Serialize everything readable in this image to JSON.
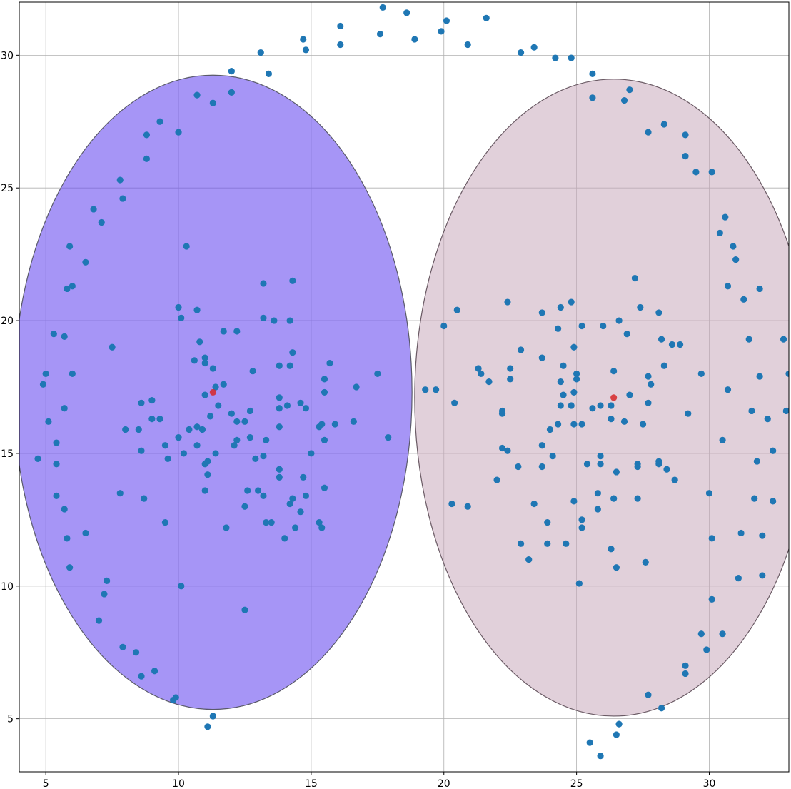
{
  "chart_data": {
    "type": "scatter",
    "title": "",
    "xlabel": "",
    "ylabel": "",
    "xlim": [
      4,
      33
    ],
    "ylim": [
      3,
      32
    ],
    "grid": true,
    "x_ticks": [
      5,
      10,
      15,
      20,
      25,
      30
    ],
    "y_ticks": [
      5,
      10,
      15,
      20,
      25,
      30
    ],
    "x_tick_labels": [
      "5",
      "10",
      "15",
      "20",
      "25",
      "30"
    ],
    "y_tick_labels": [
      "5",
      "10",
      "15",
      "20",
      "25",
      "30"
    ],
    "point_color": "#1f77b4",
    "center_color": "#d62728",
    "ellipses": [
      {
        "center": [
          11.3,
          17.3
        ],
        "width": 15.0,
        "height": 23.9,
        "face_color": "#6a4ef0",
        "face_opacity": 0.6,
        "edge_color": "#5a5a6a"
      },
      {
        "center": [
          26.4,
          17.1
        ],
        "width": 15.0,
        "height": 24.0,
        "face_color": "#c8aabb",
        "face_opacity": 0.55,
        "edge_color": "#6a5a64"
      }
    ],
    "centers": [
      {
        "x": 11.3,
        "y": 17.3
      },
      {
        "x": 26.4,
        "y": 17.1
      }
    ],
    "points": [
      [
        4.7,
        14.8
      ],
      [
        4.9,
        17.6
      ],
      [
        5.0,
        18.0
      ],
      [
        5.1,
        16.2
      ],
      [
        5.3,
        19.5
      ],
      [
        5.4,
        15.4
      ],
      [
        5.4,
        14.6
      ],
      [
        5.4,
        13.4
      ],
      [
        5.7,
        19.4
      ],
      [
        5.7,
        16.7
      ],
      [
        5.7,
        12.9
      ],
      [
        5.8,
        21.2
      ],
      [
        5.8,
        11.8
      ],
      [
        5.9,
        22.8
      ],
      [
        5.9,
        10.7
      ],
      [
        6.0,
        21.3
      ],
      [
        6.0,
        18.0
      ],
      [
        6.5,
        22.2
      ],
      [
        6.5,
        12.0
      ],
      [
        6.8,
        24.2
      ],
      [
        7.0,
        8.7
      ],
      [
        7.1,
        23.7
      ],
      [
        7.2,
        9.7
      ],
      [
        7.3,
        10.2
      ],
      [
        7.5,
        19.0
      ],
      [
        7.8,
        25.3
      ],
      [
        7.8,
        13.5
      ],
      [
        7.9,
        7.7
      ],
      [
        7.9,
        24.6
      ],
      [
        8.0,
        15.9
      ],
      [
        8.4,
        7.5
      ],
      [
        8.5,
        15.9
      ],
      [
        8.6,
        15.1
      ],
      [
        8.6,
        16.9
      ],
      [
        8.6,
        6.6
      ],
      [
        8.7,
        13.3
      ],
      [
        8.8,
        26.1
      ],
      [
        8.8,
        27.0
      ],
      [
        9.0,
        17.0
      ],
      [
        9.0,
        16.3
      ],
      [
        9.1,
        6.8
      ],
      [
        9.3,
        27.5
      ],
      [
        9.3,
        16.3
      ],
      [
        9.5,
        15.3
      ],
      [
        9.5,
        12.4
      ],
      [
        9.6,
        14.8
      ],
      [
        9.8,
        5.7
      ],
      [
        9.9,
        5.8
      ],
      [
        10.0,
        20.5
      ],
      [
        10.0,
        27.1
      ],
      [
        10.0,
        15.6
      ],
      [
        10.1,
        20.1
      ],
      [
        10.1,
        10.0
      ],
      [
        10.2,
        15.0
      ],
      [
        10.3,
        22.8
      ],
      [
        10.4,
        15.9
      ],
      [
        10.6,
        18.5
      ],
      [
        10.7,
        16.0
      ],
      [
        10.7,
        15.3
      ],
      [
        10.7,
        20.4
      ],
      [
        10.7,
        28.5
      ],
      [
        10.8,
        19.2
      ],
      [
        10.9,
        15.9
      ],
      [
        11.0,
        18.4
      ],
      [
        11.0,
        18.6
      ],
      [
        11.0,
        17.2
      ],
      [
        11.0,
        14.6
      ],
      [
        11.0,
        13.6
      ],
      [
        11.1,
        4.7
      ],
      [
        11.1,
        14.7
      ],
      [
        11.1,
        14.2
      ],
      [
        11.2,
        16.4
      ],
      [
        11.3,
        18.2
      ],
      [
        11.3,
        28.2
      ],
      [
        11.3,
        5.1
      ],
      [
        11.4,
        17.5
      ],
      [
        11.4,
        15.0
      ],
      [
        11.5,
        16.8
      ],
      [
        11.7,
        17.6
      ],
      [
        11.7,
        19.6
      ],
      [
        11.8,
        12.2
      ],
      [
        12.0,
        29.4
      ],
      [
        12.0,
        16.5
      ],
      [
        12.0,
        28.6
      ],
      [
        12.1,
        15.3
      ],
      [
        12.2,
        16.2
      ],
      [
        12.2,
        15.5
      ],
      [
        12.2,
        19.6
      ],
      [
        12.5,
        16.2
      ],
      [
        12.5,
        9.1
      ],
      [
        12.5,
        13.0
      ],
      [
        12.6,
        13.6
      ],
      [
        12.7,
        16.6
      ],
      [
        12.7,
        15.6
      ],
      [
        12.8,
        18.1
      ],
      [
        12.9,
        14.8
      ],
      [
        13.0,
        13.6
      ],
      [
        13.1,
        30.1
      ],
      [
        13.2,
        14.9
      ],
      [
        13.2,
        13.4
      ],
      [
        13.2,
        20.1
      ],
      [
        13.2,
        21.4
      ],
      [
        13.3,
        15.5
      ],
      [
        13.3,
        12.4
      ],
      [
        13.4,
        29.3
      ],
      [
        13.5,
        12.4
      ],
      [
        13.6,
        20.0
      ],
      [
        13.8,
        18.3
      ],
      [
        13.8,
        17.1
      ],
      [
        13.8,
        16.7
      ],
      [
        13.8,
        16.0
      ],
      [
        13.8,
        14.4
      ],
      [
        13.8,
        14.1
      ],
      [
        14.0,
        11.8
      ],
      [
        14.1,
        16.8
      ],
      [
        14.2,
        13.1
      ],
      [
        14.2,
        20.0
      ],
      [
        14.2,
        18.3
      ],
      [
        14.3,
        18.8
      ],
      [
        14.3,
        13.3
      ],
      [
        14.3,
        21.5
      ],
      [
        14.4,
        12.2
      ],
      [
        14.6,
        16.9
      ],
      [
        14.6,
        12.8
      ],
      [
        14.7,
        14.1
      ],
      [
        14.7,
        30.6
      ],
      [
        14.8,
        16.7
      ],
      [
        14.8,
        13.4
      ],
      [
        14.8,
        30.2
      ],
      [
        15.0,
        15.0
      ],
      [
        15.3,
        16.0
      ],
      [
        15.3,
        12.4
      ],
      [
        15.4,
        16.1
      ],
      [
        15.4,
        12.2
      ],
      [
        15.5,
        17.3
      ],
      [
        15.5,
        17.8
      ],
      [
        15.5,
        13.7
      ],
      [
        15.5,
        15.5
      ],
      [
        15.7,
        18.4
      ],
      [
        15.9,
        16.1
      ],
      [
        16.1,
        31.1
      ],
      [
        16.1,
        30.4
      ],
      [
        16.6,
        16.2
      ],
      [
        16.7,
        17.5
      ],
      [
        17.5,
        18.0
      ],
      [
        17.6,
        30.8
      ],
      [
        17.7,
        31.8
      ],
      [
        17.9,
        15.6
      ],
      [
        18.6,
        31.6
      ],
      [
        18.9,
        30.6
      ],
      [
        19.3,
        17.4
      ],
      [
        19.7,
        17.4
      ],
      [
        19.9,
        30.9
      ],
      [
        20.0,
        19.8
      ],
      [
        20.1,
        31.3
      ],
      [
        20.3,
        13.1
      ],
      [
        20.4,
        16.9
      ],
      [
        20.5,
        20.4
      ],
      [
        20.9,
        13.0
      ],
      [
        20.9,
        30.4
      ],
      [
        21.3,
        18.2
      ],
      [
        21.4,
        18.0
      ],
      [
        21.6,
        31.4
      ],
      [
        21.7,
        17.7
      ],
      [
        22.0,
        14.0
      ],
      [
        22.2,
        16.6
      ],
      [
        22.2,
        16.5
      ],
      [
        22.2,
        15.2
      ],
      [
        22.4,
        15.1
      ],
      [
        22.4,
        20.7
      ],
      [
        22.5,
        18.2
      ],
      [
        22.5,
        17.8
      ],
      [
        22.8,
        14.5
      ],
      [
        22.9,
        11.6
      ],
      [
        22.9,
        18.9
      ],
      [
        22.9,
        30.1
      ],
      [
        23.2,
        11.0
      ],
      [
        23.4,
        30.3
      ],
      [
        23.4,
        13.1
      ],
      [
        23.7,
        20.3
      ],
      [
        23.7,
        18.6
      ],
      [
        23.7,
        15.3
      ],
      [
        23.7,
        14.5
      ],
      [
        23.9,
        12.4
      ],
      [
        23.9,
        11.6
      ],
      [
        24.0,
        15.9
      ],
      [
        24.1,
        14.9
      ],
      [
        24.2,
        29.9
      ],
      [
        24.3,
        16.1
      ],
      [
        24.3,
        19.7
      ],
      [
        24.4,
        20.5
      ],
      [
        24.4,
        17.7
      ],
      [
        24.4,
        16.8
      ],
      [
        24.5,
        18.3
      ],
      [
        24.5,
        17.2
      ],
      [
        24.6,
        11.6
      ],
      [
        24.8,
        16.8
      ],
      [
        24.8,
        29.9
      ],
      [
        24.8,
        20.7
      ],
      [
        24.9,
        16.1
      ],
      [
        24.9,
        13.2
      ],
      [
        24.9,
        19.0
      ],
      [
        24.9,
        17.3
      ],
      [
        25.0,
        18.0
      ],
      [
        25.0,
        17.8
      ],
      [
        25.1,
        10.1
      ],
      [
        25.2,
        19.8
      ],
      [
        25.2,
        12.2
      ],
      [
        25.2,
        12.5
      ],
      [
        25.2,
        16.1
      ],
      [
        25.4,
        14.6
      ],
      [
        25.5,
        4.1
      ],
      [
        25.6,
        16.7
      ],
      [
        25.6,
        28.4
      ],
      [
        25.6,
        29.3
      ],
      [
        25.8,
        12.9
      ],
      [
        25.8,
        13.5
      ],
      [
        25.9,
        16.8
      ],
      [
        25.9,
        14.9
      ],
      [
        25.9,
        14.6
      ],
      [
        25.9,
        3.6
      ],
      [
        26.0,
        19.8
      ],
      [
        26.3,
        11.4
      ],
      [
        26.3,
        16.3
      ],
      [
        26.3,
        16.8
      ],
      [
        26.4,
        18.1
      ],
      [
        26.4,
        13.3
      ],
      [
        26.5,
        14.3
      ],
      [
        26.5,
        10.7
      ],
      [
        26.5,
        4.4
      ],
      [
        26.6,
        4.8
      ],
      [
        26.6,
        20.0
      ],
      [
        26.8,
        28.3
      ],
      [
        26.8,
        16.2
      ],
      [
        26.9,
        19.5
      ],
      [
        27.0,
        28.7
      ],
      [
        27.0,
        17.2
      ],
      [
        27.2,
        21.6
      ],
      [
        27.3,
        14.6
      ],
      [
        27.3,
        14.5
      ],
      [
        27.3,
        13.3
      ],
      [
        27.4,
        20.5
      ],
      [
        27.5,
        16.1
      ],
      [
        27.6,
        10.9
      ],
      [
        27.7,
        17.9
      ],
      [
        27.7,
        5.9
      ],
      [
        27.7,
        27.1
      ],
      [
        27.7,
        16.9
      ],
      [
        27.8,
        17.6
      ],
      [
        28.1,
        20.3
      ],
      [
        28.1,
        14.7
      ],
      [
        28.1,
        14.6
      ],
      [
        28.2,
        19.3
      ],
      [
        28.2,
        5.4
      ],
      [
        28.3,
        18.3
      ],
      [
        28.3,
        27.4
      ],
      [
        28.4,
        14.4
      ],
      [
        28.6,
        19.1
      ],
      [
        28.7,
        14.0
      ],
      [
        28.9,
        19.1
      ],
      [
        29.1,
        27.0
      ],
      [
        29.1,
        26.2
      ],
      [
        29.1,
        7.0
      ],
      [
        29.1,
        6.7
      ],
      [
        29.2,
        16.5
      ],
      [
        29.5,
        25.6
      ],
      [
        29.7,
        8.2
      ],
      [
        29.7,
        18.0
      ],
      [
        29.9,
        7.6
      ],
      [
        30.0,
        13.5
      ],
      [
        30.1,
        11.8
      ],
      [
        30.1,
        9.5
      ],
      [
        30.1,
        25.6
      ],
      [
        30.4,
        23.3
      ],
      [
        30.5,
        15.5
      ],
      [
        30.5,
        8.2
      ],
      [
        30.6,
        23.9
      ],
      [
        30.7,
        21.3
      ],
      [
        30.7,
        17.4
      ],
      [
        30.9,
        22.8
      ],
      [
        31.0,
        22.3
      ],
      [
        31.1,
        10.3
      ],
      [
        31.2,
        12.0
      ],
      [
        31.3,
        20.8
      ],
      [
        31.5,
        19.3
      ],
      [
        31.6,
        16.6
      ],
      [
        31.7,
        13.3
      ],
      [
        31.8,
        14.7
      ],
      [
        31.9,
        21.2
      ],
      [
        31.9,
        17.9
      ],
      [
        32.0,
        10.4
      ],
      [
        32.0,
        11.9
      ],
      [
        32.2,
        16.3
      ],
      [
        32.4,
        15.1
      ],
      [
        32.4,
        13.2
      ],
      [
        32.8,
        19.3
      ],
      [
        32.9,
        16.6
      ],
      [
        33.0,
        18.0
      ]
    ]
  }
}
